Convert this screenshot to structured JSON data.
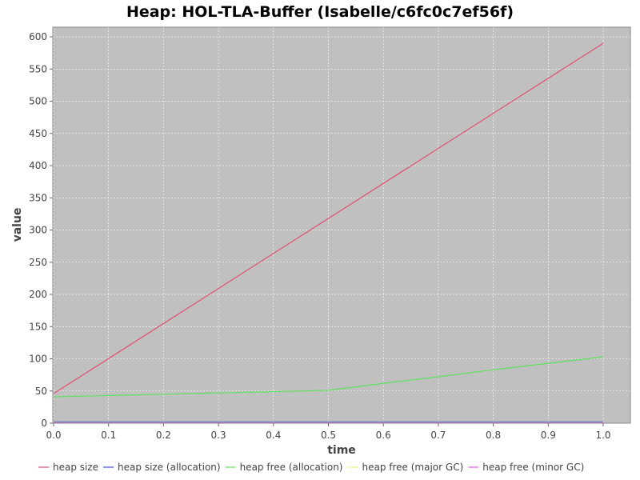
{
  "chart_data": {
    "type": "line",
    "title": "Heap: HOL-TLA-Buffer (Isabelle/c6fc0c7ef56f)",
    "xlabel": "time",
    "ylabel": "value",
    "xlim": [
      0.0,
      1.04
    ],
    "ylim": [
      0,
      615
    ],
    "xticks": [
      "0.0",
      "0.1",
      "0.2",
      "0.3",
      "0.4",
      "0.5",
      "0.6",
      "0.7",
      "0.8",
      "0.9",
      "1.0"
    ],
    "yticks": [
      "0",
      "50",
      "100",
      "150",
      "200",
      "250",
      "300",
      "350",
      "400",
      "450",
      "500",
      "550",
      "600"
    ],
    "grid": true,
    "legend_position": "bottom",
    "plot_background": "#c0c0c0",
    "series": [
      {
        "name": "heap size",
        "color": "#e05070",
        "points": [
          [
            0.0,
            46
          ],
          [
            1.0,
            590
          ]
        ]
      },
      {
        "name": "heap size (allocation)",
        "color": "#4050e0",
        "points": [
          [
            0.0,
            2
          ],
          [
            1.0,
            2
          ]
        ]
      },
      {
        "name": "heap free (allocation)",
        "color": "#60e060",
        "points": [
          [
            0.0,
            41
          ],
          [
            0.1,
            43
          ],
          [
            0.2,
            45
          ],
          [
            0.3,
            47
          ],
          [
            0.4,
            49
          ],
          [
            0.5,
            51
          ],
          [
            0.6,
            62
          ],
          [
            0.7,
            72
          ],
          [
            0.8,
            83
          ],
          [
            0.9,
            93
          ],
          [
            1.0,
            103
          ]
        ]
      },
      {
        "name": "heap free (major GC)",
        "color": "#f0f080",
        "points": [
          [
            0.0,
            1
          ],
          [
            1.0,
            1
          ]
        ]
      },
      {
        "name": "heap free (minor GC)",
        "color": "#e060e0",
        "points": [
          [
            0.0,
            0.5
          ],
          [
            1.0,
            0.5
          ]
        ]
      }
    ]
  }
}
